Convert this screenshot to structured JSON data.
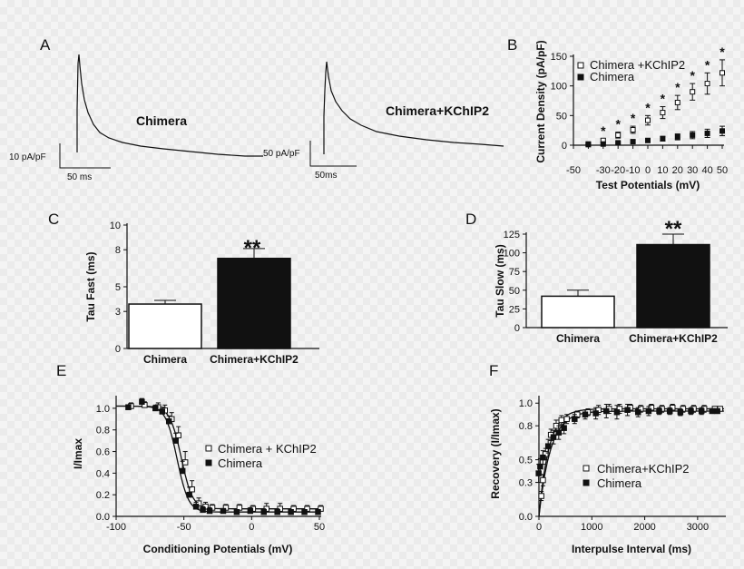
{
  "panels": {
    "A": {
      "label": "A",
      "traces": [
        {
          "name": "Chimera",
          "scale_y": "10 pA/pF",
          "scale_x": "50 ms"
        },
        {
          "name": "Chimera+KChIP2",
          "scale_y": "50 pA/pF",
          "scale_x": "50ms"
        }
      ]
    },
    "B": {
      "label": "B"
    },
    "C": {
      "label": "C",
      "sig": "**"
    },
    "D": {
      "label": "D",
      "sig": "**"
    },
    "E": {
      "label": "E"
    },
    "F": {
      "label": "F"
    }
  },
  "colors": {
    "open_marker": "#ffffff",
    "filled_marker": "#111111",
    "line": "#111111"
  },
  "chart_data": [
    {
      "id": "B",
      "type": "scatter",
      "xlabel": "Test Potentials (mV)",
      "ylabel": "Current Density (pA/pF)",
      "xlim": [
        -50,
        50
      ],
      "ylim": [
        0,
        150
      ],
      "xticks": [
        -50,
        -40,
        -30,
        -20,
        -10,
        0,
        10,
        20,
        30,
        40,
        50
      ],
      "xticklabels": [
        "-50",
        "",
        "-30",
        "-20",
        "-10",
        "0",
        "10",
        "20",
        "30",
        "40",
        "50"
      ],
      "yticks": [
        0,
        50,
        100,
        150
      ],
      "legend": "top-left",
      "x": [
        -40,
        -30,
        -20,
        -10,
        0,
        10,
        20,
        30,
        40,
        50
      ],
      "series": [
        {
          "name": "Chimera +KChIP2",
          "marker": "open-square",
          "values": [
            2,
            8,
            17,
            26,
            42,
            55,
            72,
            90,
            104,
            122
          ],
          "errors": [
            1,
            3,
            5,
            6,
            8,
            10,
            12,
            14,
            18,
            22
          ],
          "stars": [
            false,
            true,
            true,
            true,
            true,
            true,
            true,
            true,
            true,
            true
          ]
        },
        {
          "name": "Chimera",
          "marker": "filled-square",
          "values": [
            1,
            2,
            4,
            6,
            8,
            11,
            14,
            17,
            20,
            24
          ],
          "errors": [
            0.5,
            1,
            1.5,
            2,
            3,
            4,
            5,
            6,
            7,
            8
          ]
        }
      ],
      "star_label": "*"
    },
    {
      "id": "C",
      "type": "bar",
      "ylabel": "Tau Fast (ms)",
      "ylim": [
        0,
        10
      ],
      "yticks": [
        0,
        3,
        5,
        8,
        10
      ],
      "yticklabels": [
        "0",
        "3",
        "5",
        "8",
        "10"
      ],
      "categories": [
        "Chimera",
        "Chimera+KChIP2"
      ],
      "values": [
        3.6,
        7.3
      ],
      "errors": [
        0.3,
        0.8
      ],
      "fills": [
        "#ffffff",
        "#111111"
      ]
    },
    {
      "id": "D",
      "type": "bar",
      "ylabel": "Tau Slow (ms)",
      "ylim": [
        0,
        125
      ],
      "yticks": [
        0,
        25,
        50,
        75,
        100,
        125
      ],
      "categories": [
        "Chimera",
        "Chimera+KChIP2"
      ],
      "values": [
        42,
        111
      ],
      "errors": [
        8,
        14
      ],
      "fills": [
        "#ffffff",
        "#111111"
      ]
    },
    {
      "id": "E",
      "type": "scatter",
      "xlabel": "Conditioning Potentials (mV)",
      "ylabel": "I/Imax",
      "xlim": [
        -100,
        50
      ],
      "ylim": [
        0,
        1.1
      ],
      "xticks": [
        -100,
        -50,
        0,
        50
      ],
      "yticks": [
        0,
        0.2,
        0.4,
        0.6,
        0.8,
        1.0
      ],
      "yticklabels": [
        "0.0",
        "0.2",
        "0.4",
        "0.6",
        "0.8",
        "1.0"
      ],
      "legend": "right",
      "x": [
        -90,
        -80,
        -70,
        -65,
        -60,
        -55,
        -50,
        -45,
        -40,
        -35,
        -30,
        -20,
        -10,
        0,
        10,
        20,
        30,
        40,
        50
      ],
      "series": [
        {
          "name": "Chimera + KChIP2",
          "marker": "open-square",
          "v50": -52,
          "k": 4.2,
          "floor": 0.07,
          "values": [
            1.02,
            1.03,
            1.01,
            0.98,
            0.9,
            0.75,
            0.5,
            0.25,
            0.12,
            0.09,
            0.08,
            0.08,
            0.08,
            0.07,
            0.07,
            0.07,
            0.07,
            0.07,
            0.07
          ],
          "errors": [
            0.03,
            0.03,
            0.04,
            0.05,
            0.06,
            0.08,
            0.1,
            0.08,
            0.05,
            0.04,
            0.03,
            0.03,
            0.03,
            0.03,
            0.05,
            0.05,
            0.03,
            0.03,
            0.03
          ]
        },
        {
          "name": "Chimera",
          "marker": "filled-square",
          "v50": -55,
          "k": 4.2,
          "floor": 0.04,
          "values": [
            1.01,
            1.06,
            1.0,
            0.97,
            0.88,
            0.7,
            0.42,
            0.2,
            0.09,
            0.06,
            0.05,
            0.05,
            0.04,
            0.05,
            0.04,
            0.04,
            0.04,
            0.04,
            0.04
          ],
          "errors": [
            0.02,
            0.03,
            0.03,
            0.04,
            0.05,
            0.07,
            0.09,
            0.07,
            0.04,
            0.03,
            0.03,
            0.02,
            0.02,
            0.03,
            0.03,
            0.03,
            0.02,
            0.02,
            0.02
          ]
        }
      ]
    },
    {
      "id": "F",
      "type": "scatter",
      "xlabel": "Interpulse Interval (ms)",
      "ylabel": "Recovery (I/Imax)",
      "xlim": [
        0,
        3500
      ],
      "ylim": [
        0,
        1.05
      ],
      "xticks": [
        0,
        1000,
        2000,
        3000
      ],
      "yticks": [
        0,
        0.3,
        0.5,
        0.8,
        1.0
      ],
      "yticklabels": [
        "0.0",
        "0.3",
        "0.5",
        "0.8",
        "1.0"
      ],
      "legend": "bottom-right",
      "x": [
        20,
        50,
        100,
        200,
        300,
        400,
        500,
        700,
        900,
        1100,
        1300,
        1500,
        1700,
        1900,
        2100,
        2300,
        2500,
        2700,
        2900,
        3100,
        3300,
        3400
      ],
      "series": [
        {
          "name": "Chimera+KChIP2",
          "marker": "open-square",
          "plateau": 0.95,
          "tau": 190,
          "values": [
            0.18,
            0.32,
            0.55,
            0.72,
            0.8,
            0.85,
            0.86,
            0.9,
            0.92,
            0.94,
            0.95,
            0.95,
            0.96,
            0.95,
            0.96,
            0.95,
            0.96,
            0.95,
            0.95,
            0.95,
            0.95,
            0.95
          ],
          "errors": [
            0.04,
            0.05,
            0.05,
            0.05,
            0.05,
            0.04,
            0.04,
            0.03,
            0.03,
            0.04,
            0.04,
            0.04,
            0.03,
            0.03,
            0.03,
            0.03,
            0.03,
            0.03,
            0.03,
            0.03,
            0.02,
            0.02
          ]
        },
        {
          "name": "Chimera",
          "marker": "filled-square",
          "plateau": 0.93,
          "tau": 220,
          "values": [
            0.38,
            0.44,
            0.52,
            0.62,
            0.7,
            0.74,
            0.78,
            0.86,
            0.9,
            0.91,
            0.93,
            0.92,
            0.94,
            0.92,
            0.93,
            0.93,
            0.93,
            0.92,
            0.93,
            0.93,
            0.93,
            0.93
          ],
          "errors": [
            0.08,
            0.07,
            0.06,
            0.06,
            0.06,
            0.06,
            0.05,
            0.04,
            0.04,
            0.05,
            0.06,
            0.06,
            0.05,
            0.04,
            0.04,
            0.03,
            0.03,
            0.03,
            0.03,
            0.03,
            0.02,
            0.02
          ]
        }
      ]
    }
  ]
}
